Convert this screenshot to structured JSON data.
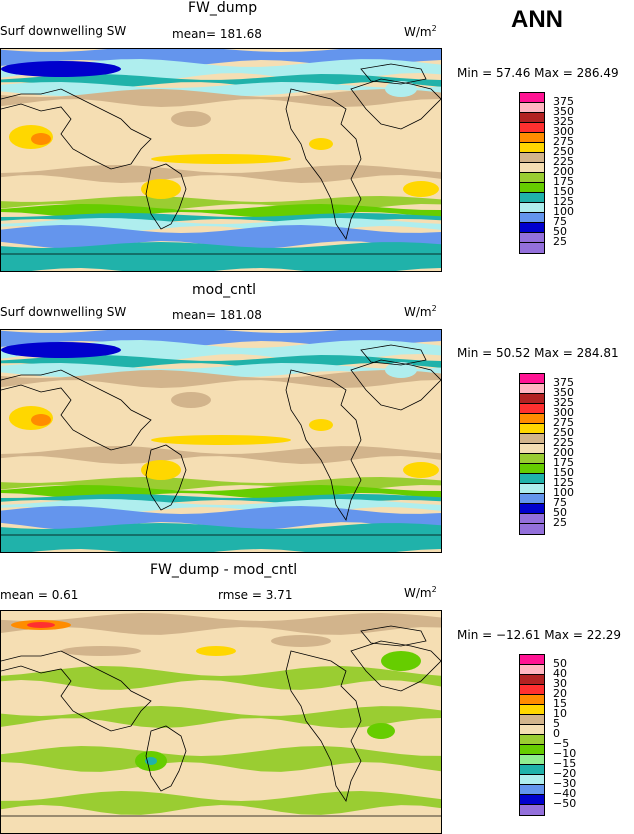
{
  "season": "ANN",
  "panels": [
    {
      "title": "FW_dump",
      "left_label": "Surf downwelling SW",
      "center_label": "mean= 181.68",
      "units": "W/m",
      "units_sup": "2",
      "minmax": "Min =  57.46 Max = 286.49",
      "levels": [
        "375",
        "350",
        "325",
        "300",
        "275",
        "250",
        "225",
        "200",
        "175",
        "150",
        "125",
        "100",
        "75",
        "50",
        "25"
      ],
      "colors": [
        "#ff1493",
        "#ffb6c1",
        "#b22222",
        "#ff3030",
        "#ff8c00",
        "#ffd700",
        "#d2b48c",
        "#f5deb3",
        "#9acd32",
        "#66cd00",
        "#20b2aa",
        "#afeeee",
        "#6495ed",
        "#0000cd",
        "#9370db",
        "#9370db"
      ],
      "kind": "abs"
    },
    {
      "title": "mod_cntl",
      "left_label": "Surf downwelling SW",
      "center_label": "mean= 181.08",
      "units": "W/m",
      "units_sup": "2",
      "minmax": "Min =  50.52 Max = 284.81",
      "levels": [
        "375",
        "350",
        "325",
        "300",
        "275",
        "250",
        "225",
        "200",
        "175",
        "150",
        "125",
        "100",
        "75",
        "50",
        "25"
      ],
      "colors": [
        "#ff1493",
        "#ffb6c1",
        "#b22222",
        "#ff3030",
        "#ff8c00",
        "#ffd700",
        "#d2b48c",
        "#f5deb3",
        "#9acd32",
        "#66cd00",
        "#20b2aa",
        "#afeeee",
        "#6495ed",
        "#0000cd",
        "#9370db",
        "#9370db"
      ],
      "kind": "abs"
    },
    {
      "title": "FW_dump - mod_cntl",
      "left_label": "mean =   0.61",
      "center_label": "rmse =   3.71",
      "units": "W/m",
      "units_sup": "2",
      "minmax": "Min = −12.61 Max =  22.29",
      "levels": [
        "50",
        "40",
        "30",
        "20",
        "15",
        "10",
        "5",
        "0",
        "−5",
        "−10",
        "−15",
        "−20",
        "−30",
        "−40",
        "−50"
      ],
      "colors": [
        "#ff1493",
        "#ffb6c1",
        "#b22222",
        "#ff3030",
        "#ff8c00",
        "#ffd700",
        "#d2b48c",
        "#f5deb3",
        "#9acd32",
        "#66cd00",
        "#90ee90",
        "#20b2aa",
        "#afeeee",
        "#6495ed",
        "#0000cd",
        "#9370db"
      ],
      "kind": "diff"
    }
  ]
}
